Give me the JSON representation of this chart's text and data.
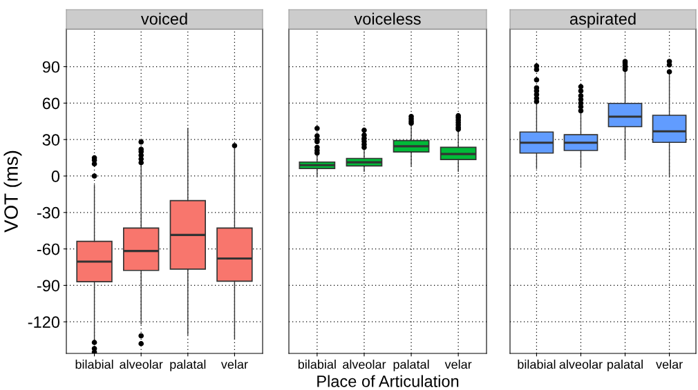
{
  "chart_data": [
    {
      "type": "box",
      "title": "voiced",
      "ylabel": "VOT (ms)",
      "categories": [
        "bilabial",
        "alveolar",
        "palatal",
        "velar"
      ],
      "ylim": [
        -146,
        121
      ],
      "yticks": [
        -120,
        -90,
        -60,
        -30,
        0,
        30,
        60,
        90
      ],
      "grid": true,
      "marker": "circle",
      "series": [
        {
          "color": "#f8766d",
          "boxes": [
            {
              "low": -135,
              "q1": -87,
              "median": -70.4,
              "q3": -53.8,
              "high": -7.5,
              "outliers": [
                0,
                10,
                13,
                15,
                -137,
                -142,
                -145
              ]
            },
            {
              "low": -121.7,
              "q1": -77.7,
              "median": -61.7,
              "q3": -42.8,
              "high": 10.4,
              "outliers": [
                11,
                14,
                17,
                20,
                22,
                28,
                -131.5,
                -138
              ]
            },
            {
              "low": -130.6,
              "q1": -76.6,
              "median": -48.5,
              "q3": -20.2,
              "high": 39.2
            },
            {
              "low": -134,
              "q1": -86.6,
              "median": -67.9,
              "q3": -42.8,
              "high": 23.6,
              "outliers": [
                25
              ]
            }
          ]
        }
      ]
    },
    {
      "type": "box",
      "title": "voiceless",
      "xlabel": "Place of Articulation",
      "categories": [
        "bilabial",
        "alveolar",
        "palatal",
        "velar"
      ],
      "ylim": [
        -146,
        121
      ],
      "yticks": [
        -120,
        -90,
        -60,
        -30,
        0,
        30,
        60,
        90
      ],
      "grid": true,
      "marker": "circle",
      "tick_labels": "x",
      "series": [
        {
          "color": "#00ba38",
          "boxes": [
            {
              "low": 0,
              "q1": 6.2,
              "median": 8.9,
              "q3": 11.5,
              "high": 17.9,
              "outliers": [
                18.9,
                21,
                23.6,
                28.3,
                30,
                33,
                39.2
              ]
            },
            {
              "low": 3.8,
              "q1": 8.3,
              "median": 11.3,
              "q3": 14.5,
              "high": 22.2,
              "outliers": [
                23.6,
                26,
                28.5,
                31,
                33.7,
                37.7
              ]
            },
            {
              "low": 8.5,
              "q1": 19.8,
              "median": 24.5,
              "q3": 29.2,
              "high": 42.5,
              "outliers": [
                43.4,
                45,
                47,
                49
              ]
            },
            {
              "low": 3.8,
              "q1": 13.6,
              "median": 18.1,
              "q3": 23.6,
              "high": 37.7,
              "outliers": [
                38.5,
                40,
                42,
                44,
                46,
                48,
                49.6
              ]
            }
          ]
        }
      ]
    },
    {
      "type": "box",
      "title": "aspirated",
      "categories": [
        "bilabial",
        "alveolar",
        "palatal",
        "velar"
      ],
      "ylim": [
        -146,
        121
      ],
      "yticks": [
        -120,
        -90,
        -60,
        -30,
        0,
        30,
        60,
        90
      ],
      "grid": true,
      "marker": "circle",
      "tick_labels": "x",
      "series": [
        {
          "color": "#619cff",
          "boxes": [
            {
              "low": 6.2,
              "q1": 18.9,
              "median": 27.4,
              "q3": 36.2,
              "high": 61.3,
              "outliers": [
                61.3,
                64,
                67,
                70,
                72.6,
                79.1,
                87.6,
                90.5
              ]
            },
            {
              "low": 7,
              "q1": 21,
              "median": 27.4,
              "q3": 34,
              "high": 52.8,
              "outliers": [
                53.7,
                57,
                60,
                63,
                66,
                70,
                73.5
              ]
            },
            {
              "low": 13.6,
              "q1": 40.6,
              "median": 48.9,
              "q3": 59.8,
              "high": 87.7,
              "outliers": [
                87.7,
                89,
                91,
                93,
                94.3
              ]
            },
            {
              "low": 0,
              "q1": 27.7,
              "median": 36.8,
              "q3": 50,
              "high": 83.9,
              "outliers": [
                85.8,
                91.5,
                94.3
              ]
            }
          ]
        }
      ]
    }
  ]
}
